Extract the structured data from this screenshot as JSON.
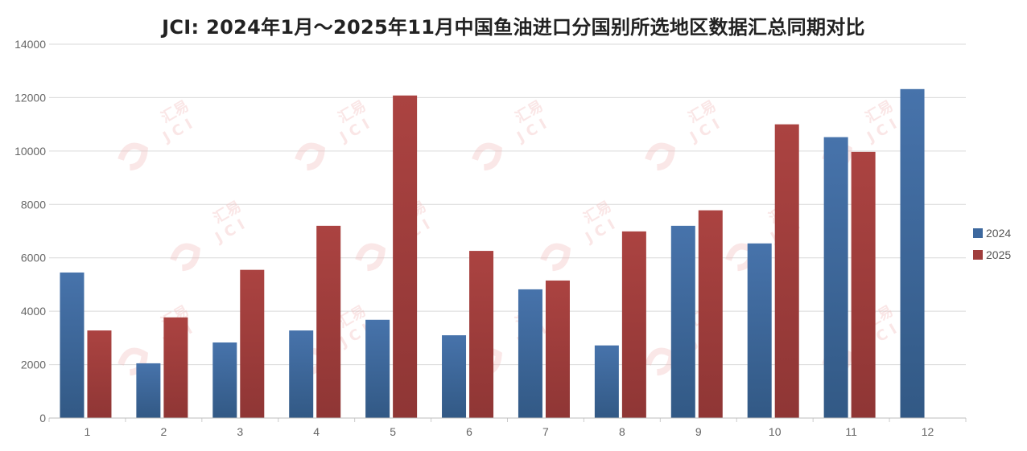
{
  "chart_data": {
    "type": "bar",
    "title": "JCI: 2024年1月～2025年11月中国鱼油进口分国别所选地区数据汇总同期对比",
    "xlabel": "",
    "ylabel": "",
    "categories": [
      "1",
      "2",
      "3",
      "4",
      "5",
      "6",
      "7",
      "8",
      "9",
      "10",
      "11",
      "12"
    ],
    "series": [
      {
        "name": "2024",
        "color": "#3d689e",
        "values": [
          5450,
          2050,
          2830,
          3280,
          3680,
          3100,
          4820,
          2720,
          7200,
          6540,
          10520,
          12320
        ]
      },
      {
        "name": "2025",
        "color": "#a03d3c",
        "values": [
          3280,
          3770,
          5550,
          7200,
          12080,
          6260,
          5150,
          6990,
          7780,
          11000,
          9970,
          null
        ]
      }
    ],
    "ylim": [
      0,
      14000
    ],
    "yticks": [
      0,
      2000,
      4000,
      6000,
      8000,
      10000,
      12000,
      14000
    ],
    "grid": true,
    "legend_position": "right",
    "watermark_text": [
      "汇易",
      "JCI"
    ]
  }
}
